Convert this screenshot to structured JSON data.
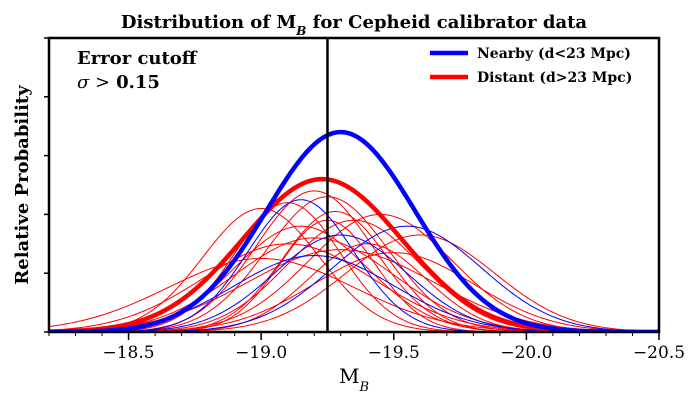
{
  "chart_data": {
    "type": "line",
    "title_main": "Distribution of M",
    "title_sub": "B",
    "title_rest": " for Cepheid calibrator data",
    "xlabel_main": "M",
    "xlabel_sub": "B",
    "ylabel": "Relative Probability",
    "xlim": [
      -18.2,
      -20.5
    ],
    "ylim": [
      0,
      1.0
    ],
    "x_ticks": [
      -18.5,
      -19.0,
      -19.5,
      -20.0,
      -20.5
    ],
    "x_tick_labels": [
      "−18.5",
      "−19.0",
      "−19.5",
      "−20.0",
      "−20.5"
    ],
    "vertical_line_x": -19.25,
    "annotation_line1": "Error cutoff",
    "annotation_line2_symbol": "σ >",
    "annotation_line2_value": "0.15",
    "legend_position": "top-right",
    "legend": [
      {
        "label": "Nearby (d<23 Mpc)",
        "color": "#0000ff"
      },
      {
        "label": "Distant (d>23 Mpc)",
        "color": "#ff0000"
      }
    ],
    "summary_curves": [
      {
        "name": "Nearby",
        "color": "#0000ff",
        "mu": -19.3,
        "sigma": 0.28,
        "amp": 0.68
      },
      {
        "name": "Distant",
        "color": "#ff0000",
        "mu": -19.23,
        "sigma": 0.3,
        "amp": 0.52
      }
    ],
    "individual_curves_nearby": [
      {
        "mu": -19.15,
        "sigma": 0.2,
        "amp": 0.45
      },
      {
        "mu": -19.55,
        "sigma": 0.28,
        "amp": 0.36
      },
      {
        "mu": -19.3,
        "sigma": 0.25,
        "amp": 0.33
      },
      {
        "mu": -19.2,
        "sigma": 0.3,
        "amp": 0.26
      }
    ],
    "individual_curves_distant": [
      {
        "mu": -19.0,
        "sigma": 0.22,
        "amp": 0.42
      },
      {
        "mu": -19.1,
        "sigma": 0.2,
        "amp": 0.44
      },
      {
        "mu": -19.2,
        "sigma": 0.22,
        "amp": 0.48
      },
      {
        "mu": -19.25,
        "sigma": 0.23,
        "amp": 0.46
      },
      {
        "mu": -19.28,
        "sigma": 0.2,
        "amp": 0.41
      },
      {
        "mu": -19.35,
        "sigma": 0.25,
        "amp": 0.38
      },
      {
        "mu": -19.45,
        "sigma": 0.27,
        "amp": 0.4
      },
      {
        "mu": -19.6,
        "sigma": 0.28,
        "amp": 0.33
      },
      {
        "mu": -19.2,
        "sigma": 0.3,
        "amp": 0.32
      },
      {
        "mu": -19.1,
        "sigma": 0.32,
        "amp": 0.3
      },
      {
        "mu": -19.3,
        "sigma": 0.35,
        "amp": 0.28
      },
      {
        "mu": -19.0,
        "sigma": 0.35,
        "amp": 0.25
      },
      {
        "mu": -19.4,
        "sigma": 0.22,
        "amp": 0.3
      },
      {
        "mu": -19.15,
        "sigma": 0.25,
        "amp": 0.36
      },
      {
        "mu": -19.5,
        "sigma": 0.3,
        "amp": 0.27
      },
      {
        "mu": -19.25,
        "sigma": 0.18,
        "amp": 0.38
      }
    ]
  }
}
